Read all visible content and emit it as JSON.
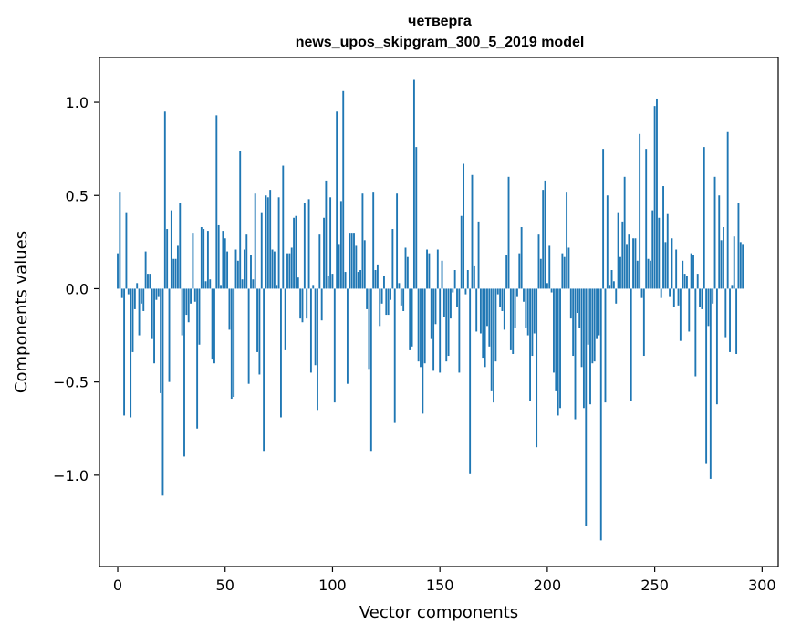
{
  "chart_data": {
    "type": "bar",
    "title": "четверга",
    "subtitle": "news_upos_skipgram_300_5_2019 model",
    "xlabel": "Vector components",
    "ylabel": "Components values",
    "xlim": [
      -8.5,
      307.5
    ],
    "ylim": [
      -1.49,
      1.24
    ],
    "xticks": [
      0,
      50,
      100,
      150,
      200,
      250,
      300
    ],
    "yticks": [
      -1.0,
      -0.5,
      0.0,
      0.5,
      1.0
    ],
    "xtick_labels": [
      "0",
      "50",
      "100",
      "150",
      "200",
      "250",
      "300"
    ],
    "ytick_labels": [
      "−1.0",
      "−0.5",
      "0.0",
      "0.5",
      "1.0"
    ],
    "grid": false,
    "bar_color": "#1f77b4",
    "values": [
      0.19,
      0.52,
      -0.05,
      -0.68,
      0.41,
      -0.03,
      -0.69,
      -0.34,
      -0.11,
      0.03,
      -0.25,
      -0.08,
      -0.12,
      0.2,
      0.08,
      0.08,
      -0.27,
      -0.4,
      -0.06,
      -0.04,
      -0.56,
      -1.11,
      0.95,
      0.32,
      -0.5,
      0.42,
      0.16,
      0.16,
      0.23,
      0.46,
      -0.25,
      -0.9,
      -0.14,
      -0.18,
      -0.08,
      0.3,
      -0.07,
      -0.75,
      -0.3,
      0.33,
      0.32,
      0.04,
      0.31,
      0.05,
      -0.38,
      -0.4,
      0.93,
      0.34,
      0.02,
      0.31,
      0.27,
      0.2,
      -0.22,
      -0.59,
      -0.58,
      0.21,
      0.15,
      0.74,
      0.05,
      0.21,
      0.29,
      -0.51,
      0.18,
      0.05,
      0.51,
      -0.34,
      -0.46,
      0.41,
      -0.87,
      0.5,
      0.49,
      0.53,
      0.21,
      0.2,
      0.02,
      0.49,
      -0.69,
      0.66,
      -0.33,
      0.19,
      0.19,
      0.22,
      0.38,
      0.39,
      0.06,
      -0.16,
      -0.18,
      0.46,
      -0.16,
      0.48,
      -0.45,
      0.02,
      -0.41,
      -0.65,
      0.29,
      -0.17,
      0.38,
      0.58,
      0.07,
      0.49,
      0.08,
      -0.61,
      0.95,
      0.24,
      0.47,
      1.06,
      0.09,
      -0.51,
      0.3,
      0.3,
      0.3,
      0.23,
      0.09,
      0.1,
      0.51,
      0.26,
      -0.11,
      -0.43,
      -0.87,
      0.52,
      0.1,
      0.13,
      -0.2,
      -0.08,
      0.07,
      -0.14,
      -0.14,
      -0.06,
      0.32,
      -0.72,
      0.51,
      0.03,
      -0.09,
      -0.12,
      0.22,
      0.17,
      -0.33,
      -0.31,
      1.12,
      0.76,
      -0.39,
      -0.42,
      -0.67,
      -0.4,
      0.21,
      0.19,
      -0.27,
      -0.44,
      -0.19,
      0.21,
      -0.45,
      0.15,
      -0.15,
      -0.39,
      -0.36,
      -0.16,
      -0.02,
      0.1,
      -0.1,
      -0.45,
      0.39,
      0.67,
      -0.03,
      0.1,
      -0.99,
      0.61,
      0.12,
      -0.23,
      0.36,
      -0.24,
      -0.37,
      -0.42,
      -0.2,
      -0.31,
      -0.55,
      -0.61,
      -0.39,
      -0.03,
      -0.1,
      -0.12,
      -0.22,
      0.18,
      0.6,
      -0.33,
      -0.35,
      -0.21,
      -0.04,
      0.19,
      0.33,
      -0.07,
      -0.21,
      -0.25,
      -0.6,
      -0.36,
      -0.24,
      -0.85,
      0.29,
      0.16,
      0.53,
      0.58,
      0.03,
      0.23,
      -0.02,
      -0.45,
      -0.55,
      -0.68,
      -0.64,
      0.19,
      0.17,
      0.52,
      0.22,
      -0.16,
      -0.36,
      -0.7,
      -0.13,
      -0.21,
      -0.42,
      -0.64,
      -1.27,
      -0.3,
      -0.62,
      -0.4,
      -0.39,
      -0.27,
      -0.25,
      -1.35,
      0.75,
      -0.61,
      0.5,
      0.02,
      0.1,
      0.04,
      -0.08,
      0.41,
      0.17,
      0.36,
      0.6,
      0.24,
      0.29,
      -0.6,
      0.27,
      0.27,
      0.15,
      0.83,
      -0.05,
      -0.36,
      0.75,
      0.16,
      0.15,
      0.42,
      0.98,
      1.02,
      0.38,
      -0.05,
      0.55,
      0.25,
      0.4,
      -0.04,
      0.27,
      -0.1,
      0.21,
      -0.09,
      -0.28,
      0.15,
      0.08,
      0.07,
      -0.23,
      0.19,
      0.18,
      -0.47,
      0.08,
      -0.1,
      -0.11,
      0.76,
      -0.94,
      -0.2,
      -1.02,
      -0.08,
      0.6,
      -0.62,
      0.5,
      0.26,
      0.33,
      -0.26,
      0.84,
      -0.34,
      0.02,
      0.28,
      -0.35,
      0.46,
      0.25,
      0.24
    ]
  }
}
